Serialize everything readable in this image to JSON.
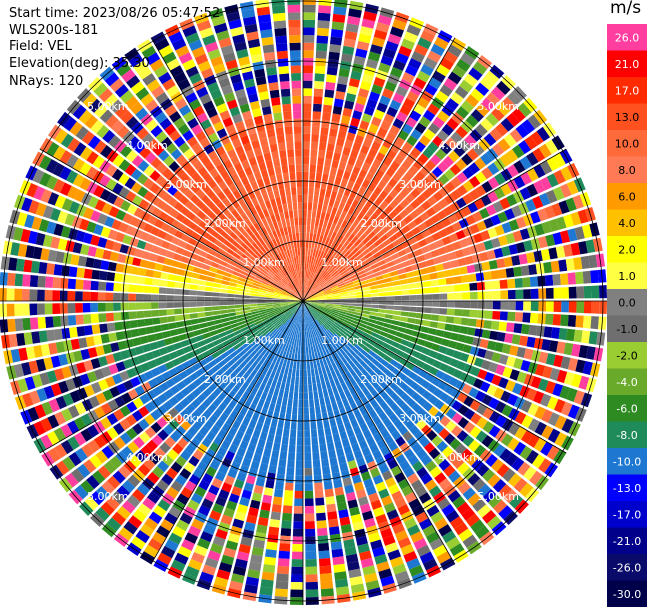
{
  "header": {
    "start_time": "Start time: 2023/08/26 05:47:52",
    "instrument": "WLS200s-181",
    "field": "Field: VEL",
    "elevation": "Elevation(deg): 35.30",
    "nrays": "NRays: 120"
  },
  "range_rings": [
    "1.00km",
    "2.00km",
    "3.00km",
    "4.00km",
    "5.00km"
  ],
  "colorbar": {
    "unit": "m/s",
    "levels": [
      {
        "label": "26.0",
        "color": "#ff3ea0"
      },
      {
        "label": "21.0",
        "color": "#ff0000"
      },
      {
        "label": "17.0",
        "color": "#ff2a00"
      },
      {
        "label": "13.0",
        "color": "#ff5020"
      },
      {
        "label": "10.0",
        "color": "#ff6a3a"
      },
      {
        "label": "8.0",
        "color": "#ff7a55"
      },
      {
        "label": "6.0",
        "color": "#ff9a00"
      },
      {
        "label": "4.0",
        "color": "#ffc000"
      },
      {
        "label": "2.0",
        "color": "#ffff00"
      },
      {
        "label": "1.0",
        "color": "#ffff44"
      },
      {
        "label": "0.0",
        "color": "#808080"
      },
      {
        "label": "-1.0",
        "color": "#6f6f6f"
      },
      {
        "label": "-2.0",
        "color": "#9acd32"
      },
      {
        "label": "-4.0",
        "color": "#6aaa2a"
      },
      {
        "label": "-6.0",
        "color": "#2e8b22"
      },
      {
        "label": "-8.0",
        "color": "#1f8a5a"
      },
      {
        "label": "-10.0",
        "color": "#1e78d2"
      },
      {
        "label": "-13.0",
        "color": "#0000ff"
      },
      {
        "label": "-17.0",
        "color": "#0000cd"
      },
      {
        "label": "-21.0",
        "color": "#00008b"
      },
      {
        "label": "-26.0",
        "color": "#0a0a6a"
      },
      {
        "label": "-30.0",
        "color": "#00004a"
      }
    ]
  }
}
